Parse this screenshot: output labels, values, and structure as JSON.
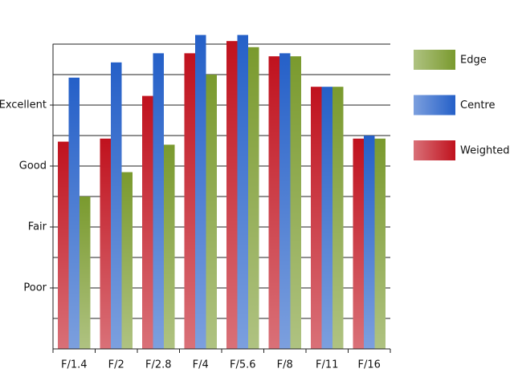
{
  "chart_data": {
    "type": "bar",
    "categories": [
      "F/1.4",
      "F/2",
      "F/2.8",
      "F/4",
      "F/5.6",
      "F/8",
      "F/11",
      "F/16"
    ],
    "series": [
      {
        "name": "Weighted",
        "color": "#c0121e",
        "values": [
          6.8,
          6.9,
          8.3,
          9.7,
          10.1,
          9.6,
          8.6,
          6.9
        ]
      },
      {
        "name": "Centre",
        "color": "#2560c8",
        "values": [
          8.9,
          9.4,
          9.7,
          10.3,
          10.3,
          9.7,
          8.6,
          7.0
        ]
      },
      {
        "name": "Edge",
        "color": "#7a9a2e",
        "values": [
          5.0,
          5.8,
          6.7,
          9.0,
          9.9,
          9.6,
          8.6,
          6.9
        ]
      }
    ],
    "ylim": [
      0,
      10.3
    ],
    "yticks": [
      {
        "value": 2,
        "label": "Poor"
      },
      {
        "value": 4,
        "label": "Fair"
      },
      {
        "value": 6,
        "label": "Good"
      },
      {
        "value": 8,
        "label": "Excellent"
      }
    ],
    "minor_yticks": [
      1,
      3,
      5,
      7,
      9,
      10
    ],
    "grid": true,
    "legend": "right"
  }
}
